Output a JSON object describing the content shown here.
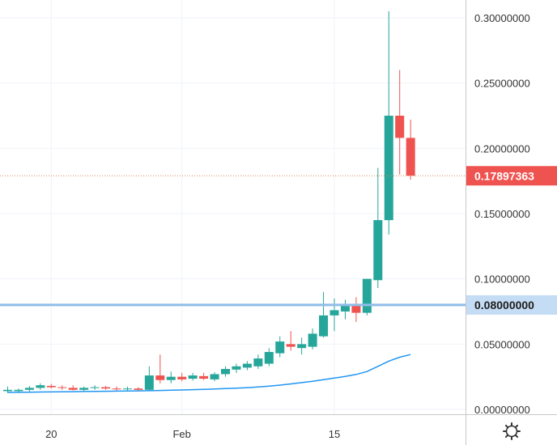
{
  "chart_data": {
    "type": "candlestick",
    "title": "",
    "xlabel": "",
    "ylabel": "",
    "ylim": [
      0.0,
      0.31
    ],
    "y_ticks": [
      "0.30000000",
      "0.25000000",
      "0.20000000",
      "0.15000000",
      "0.10000000",
      "0.05000000",
      "0.00000000"
    ],
    "x_ticks": [
      {
        "label": "20",
        "index": 4
      },
      {
        "label": "Feb",
        "index": 16
      },
      {
        "label": "15",
        "index": 30
      }
    ],
    "current_price": {
      "label": "0.17897363",
      "value": 0.17897363
    },
    "horizontal_line": {
      "label": "0.08000000",
      "value": 0.08
    },
    "colors": {
      "up": "#26a69a",
      "down": "#ef5350",
      "ma": "#2196f3",
      "hline": "#90bde8",
      "grid": "#f0f3fa",
      "axis_text": "#333333",
      "price_line": "#d68a5e"
    },
    "candles": [
      {
        "o": 0.014,
        "h": 0.0175,
        "l": 0.0125,
        "c": 0.015
      },
      {
        "o": 0.014,
        "h": 0.016,
        "l": 0.0125,
        "c": 0.015
      },
      {
        "o": 0.015,
        "h": 0.018,
        "l": 0.0135,
        "c": 0.0165
      },
      {
        "o": 0.0165,
        "h": 0.02,
        "l": 0.015,
        "c": 0.0185
      },
      {
        "o": 0.018,
        "h": 0.0195,
        "l": 0.016,
        "c": 0.017
      },
      {
        "o": 0.017,
        "h": 0.0185,
        "l": 0.015,
        "c": 0.0165
      },
      {
        "o": 0.0165,
        "h": 0.0185,
        "l": 0.0145,
        "c": 0.015
      },
      {
        "o": 0.015,
        "h": 0.0175,
        "l": 0.0135,
        "c": 0.0165
      },
      {
        "o": 0.0165,
        "h": 0.0185,
        "l": 0.015,
        "c": 0.017
      },
      {
        "o": 0.017,
        "h": 0.018,
        "l": 0.015,
        "c": 0.016
      },
      {
        "o": 0.016,
        "h": 0.0175,
        "l": 0.0145,
        "c": 0.0155
      },
      {
        "o": 0.0155,
        "h": 0.0175,
        "l": 0.014,
        "c": 0.016
      },
      {
        "o": 0.016,
        "h": 0.017,
        "l": 0.0145,
        "c": 0.015
      },
      {
        "o": 0.015,
        "h": 0.033,
        "l": 0.0145,
        "c": 0.026
      },
      {
        "o": 0.026,
        "h": 0.042,
        "l": 0.02,
        "c": 0.0225
      },
      {
        "o": 0.0225,
        "h": 0.029,
        "l": 0.02,
        "c": 0.025
      },
      {
        "o": 0.025,
        "h": 0.028,
        "l": 0.0215,
        "c": 0.023
      },
      {
        "o": 0.0235,
        "h": 0.028,
        "l": 0.022,
        "c": 0.026
      },
      {
        "o": 0.0255,
        "h": 0.028,
        "l": 0.0225,
        "c": 0.0235
      },
      {
        "o": 0.023,
        "h": 0.0285,
        "l": 0.0215,
        "c": 0.027
      },
      {
        "o": 0.027,
        "h": 0.033,
        "l": 0.025,
        "c": 0.031
      },
      {
        "o": 0.0305,
        "h": 0.035,
        "l": 0.028,
        "c": 0.033
      },
      {
        "o": 0.032,
        "h": 0.037,
        "l": 0.03,
        "c": 0.035
      },
      {
        "o": 0.033,
        "h": 0.042,
        "l": 0.031,
        "c": 0.039
      },
      {
        "o": 0.035,
        "h": 0.047,
        "l": 0.033,
        "c": 0.044
      },
      {
        "o": 0.043,
        "h": 0.056,
        "l": 0.04,
        "c": 0.052
      },
      {
        "o": 0.05,
        "h": 0.06,
        "l": 0.045,
        "c": 0.048
      },
      {
        "o": 0.047,
        "h": 0.055,
        "l": 0.042,
        "c": 0.05
      },
      {
        "o": 0.048,
        "h": 0.062,
        "l": 0.046,
        "c": 0.058
      },
      {
        "o": 0.056,
        "h": 0.09,
        "l": 0.055,
        "c": 0.072
      },
      {
        "o": 0.072,
        "h": 0.085,
        "l": 0.06,
        "c": 0.076
      },
      {
        "o": 0.075,
        "h": 0.084,
        "l": 0.069,
        "c": 0.08
      },
      {
        "o": 0.08,
        "h": 0.086,
        "l": 0.067,
        "c": 0.074
      },
      {
        "o": 0.074,
        "h": 0.1,
        "l": 0.072,
        "c": 0.1
      },
      {
        "o": 0.099,
        "h": 0.185,
        "l": 0.093,
        "c": 0.145
      },
      {
        "o": 0.145,
        "h": 0.305,
        "l": 0.134,
        "c": 0.225
      },
      {
        "o": 0.225,
        "h": 0.26,
        "l": 0.18,
        "c": 0.208
      },
      {
        "o": 0.208,
        "h": 0.222,
        "l": 0.176,
        "c": 0.179
      }
    ],
    "moving_average": [
      0.013,
      0.0131,
      0.0132,
      0.0133,
      0.0134,
      0.0135,
      0.0136,
      0.0137,
      0.0138,
      0.0139,
      0.014,
      0.0141,
      0.0142,
      0.0143,
      0.0145,
      0.0147,
      0.0149,
      0.0151,
      0.0153,
      0.0156,
      0.0159,
      0.0163,
      0.0167,
      0.0172,
      0.0178,
      0.0186,
      0.0195,
      0.0205,
      0.0216,
      0.0228,
      0.024,
      0.0253,
      0.0268,
      0.029,
      0.033,
      0.037,
      0.04,
      0.042
    ]
  }
}
